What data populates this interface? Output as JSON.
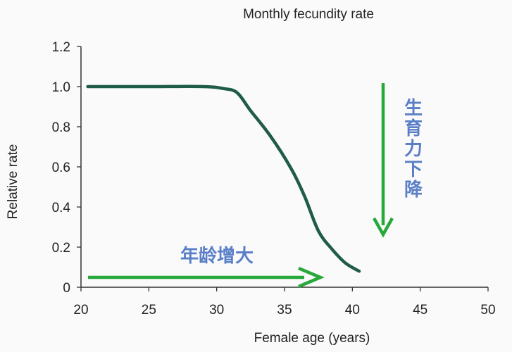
{
  "chart_data": {
    "type": "line",
    "title": "Monthly fecundity rate",
    "xlabel": "Female age (years)",
    "ylabel": "Relative rate",
    "xlim": [
      20,
      50
    ],
    "ylim": [
      0,
      1.2
    ],
    "x_ticks": [
      "20",
      "25",
      "30",
      "35",
      "40",
      "45",
      "50"
    ],
    "y_ticks": [
      "0",
      "0.2",
      "0.4",
      "0.6",
      "0.8",
      "1.0",
      "1.2"
    ],
    "grid": false,
    "series": [
      {
        "x": [
          20.5,
          25,
          29,
          30.5,
          31.5,
          32.5,
          34,
          35.5,
          36.5,
          37.5,
          38.5,
          39.5,
          40.5
        ],
        "y": [
          1.0,
          1.0,
          1.0,
          0.99,
          0.97,
          0.88,
          0.75,
          0.59,
          0.45,
          0.28,
          0.19,
          0.12,
          0.08
        ]
      }
    ],
    "annotations": [
      {
        "text": "年龄增大",
        "direction": "right"
      },
      {
        "text": "生育力下降",
        "direction": "down"
      }
    ]
  },
  "colors": {
    "line": "#1f5c46",
    "arrow": "#27a83a",
    "annotation_text": "#5b7fc7",
    "axis": "#333333"
  }
}
